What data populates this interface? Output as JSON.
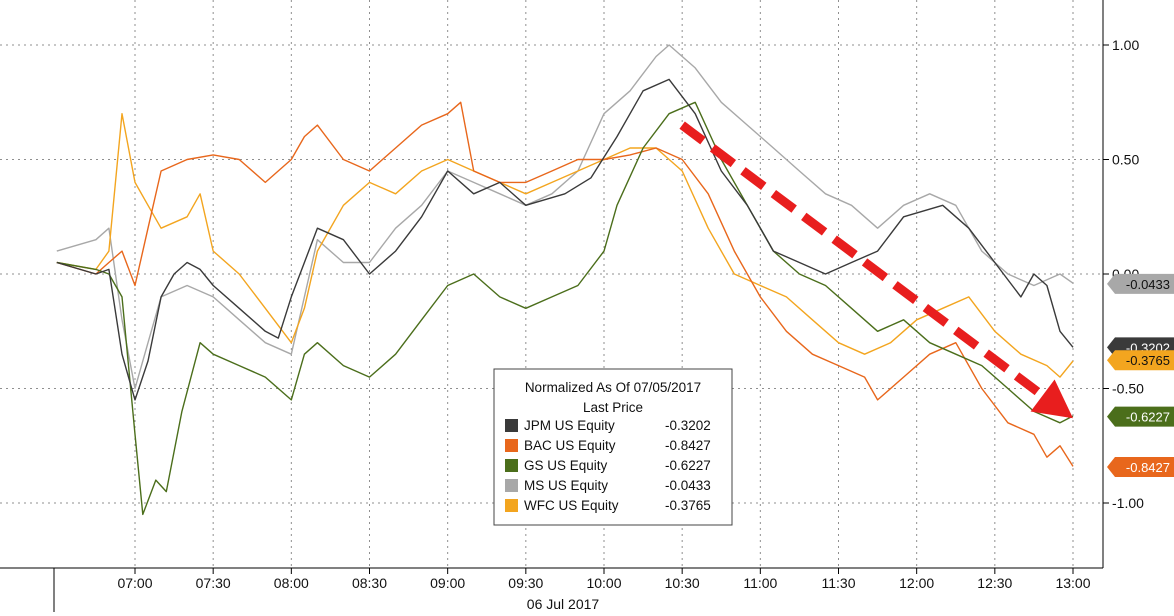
{
  "chart_data": {
    "type": "line",
    "title": "",
    "xlabel": "06 Jul 2017",
    "ylabel": "",
    "x_ticks": [
      "07:00",
      "07:30",
      "08:00",
      "08:30",
      "09:00",
      "09:30",
      "10:00",
      "10:30",
      "11:00",
      "11:30",
      "12:00",
      "12:30",
      "13:00"
    ],
    "y_ticks": [
      "1.00",
      "0.50",
      "0.00",
      "-0.50",
      "-1.00"
    ],
    "ylim": [
      -1.3,
      1.2
    ],
    "xlim": [
      "06:30",
      "13:00"
    ],
    "grid": true,
    "legend": {
      "placement": "bottom-center",
      "title": "Normalized As Of 07/05/2017",
      "subtitle": "Last Price"
    },
    "series": [
      {
        "name": "JPM US Equity",
        "last": "-0.3202",
        "color": "#3a3a3a",
        "points": [
          [
            "06:30",
            0.05
          ],
          [
            "06:45",
            0.0
          ],
          [
            "06:50",
            0.02
          ],
          [
            "06:55",
            -0.35
          ],
          [
            "07:00",
            -0.55
          ],
          [
            "07:05",
            -0.38
          ],
          [
            "07:10",
            -0.1
          ],
          [
            "07:15",
            0.0
          ],
          [
            "07:20",
            0.05
          ],
          [
            "07:25",
            0.02
          ],
          [
            "07:30",
            -0.05
          ],
          [
            "07:40",
            -0.15
          ],
          [
            "07:50",
            -0.25
          ],
          [
            "07:55",
            -0.28
          ],
          [
            "08:00",
            -0.1
          ],
          [
            "08:05",
            0.05
          ],
          [
            "08:10",
            0.2
          ],
          [
            "08:20",
            0.15
          ],
          [
            "08:30",
            0.0
          ],
          [
            "08:40",
            0.1
          ],
          [
            "08:50",
            0.25
          ],
          [
            "09:00",
            0.45
          ],
          [
            "09:10",
            0.35
          ],
          [
            "09:20",
            0.4
          ],
          [
            "09:30",
            0.3
          ],
          [
            "09:45",
            0.35
          ],
          [
            "09:55",
            0.42
          ],
          [
            "10:05",
            0.6
          ],
          [
            "10:15",
            0.8
          ],
          [
            "10:25",
            0.85
          ],
          [
            "10:35",
            0.7
          ],
          [
            "10:45",
            0.45
          ],
          [
            "10:55",
            0.3
          ],
          [
            "11:05",
            0.1
          ],
          [
            "11:15",
            0.05
          ],
          [
            "11:25",
            0.0
          ],
          [
            "11:35",
            0.05
          ],
          [
            "11:45",
            0.1
          ],
          [
            "11:55",
            0.25
          ],
          [
            "12:10",
            0.3
          ],
          [
            "12:20",
            0.2
          ],
          [
            "12:30",
            0.05
          ],
          [
            "12:40",
            -0.1
          ],
          [
            "12:45",
            0.0
          ],
          [
            "12:50",
            -0.05
          ],
          [
            "12:55",
            -0.25
          ],
          [
            "13:00",
            -0.32
          ]
        ]
      },
      {
        "name": "BAC US Equity",
        "last": "-0.8427",
        "color": "#e8671c",
        "points": [
          [
            "06:30",
            0.05
          ],
          [
            "06:45",
            0.0
          ],
          [
            "06:50",
            0.05
          ],
          [
            "06:55",
            0.1
          ],
          [
            "07:00",
            -0.05
          ],
          [
            "07:05",
            0.2
          ],
          [
            "07:10",
            0.45
          ],
          [
            "07:20",
            0.5
          ],
          [
            "07:30",
            0.52
          ],
          [
            "07:40",
            0.5
          ],
          [
            "07:50",
            0.4
          ],
          [
            "08:00",
            0.5
          ],
          [
            "08:05",
            0.6
          ],
          [
            "08:10",
            0.65
          ],
          [
            "08:20",
            0.5
          ],
          [
            "08:30",
            0.45
          ],
          [
            "08:40",
            0.55
          ],
          [
            "08:50",
            0.65
          ],
          [
            "09:00",
            0.7
          ],
          [
            "09:05",
            0.75
          ],
          [
            "09:10",
            0.45
          ],
          [
            "09:20",
            0.4
          ],
          [
            "09:30",
            0.4
          ],
          [
            "09:40",
            0.45
          ],
          [
            "09:50",
            0.5
          ],
          [
            "10:00",
            0.5
          ],
          [
            "10:10",
            0.52
          ],
          [
            "10:20",
            0.55
          ],
          [
            "10:30",
            0.5
          ],
          [
            "10:40",
            0.35
          ],
          [
            "10:50",
            0.1
          ],
          [
            "11:00",
            -0.1
          ],
          [
            "11:10",
            -0.25
          ],
          [
            "11:20",
            -0.35
          ],
          [
            "11:30",
            -0.4
          ],
          [
            "11:40",
            -0.45
          ],
          [
            "11:45",
            -0.55
          ],
          [
            "11:55",
            -0.45
          ],
          [
            "12:05",
            -0.35
          ],
          [
            "12:15",
            -0.3
          ],
          [
            "12:25",
            -0.5
          ],
          [
            "12:35",
            -0.65
          ],
          [
            "12:45",
            -0.7
          ],
          [
            "12:50",
            -0.8
          ],
          [
            "12:55",
            -0.75
          ],
          [
            "13:00",
            -0.84
          ]
        ]
      },
      {
        "name": "GS US Equity",
        "last": "-0.6227",
        "color": "#4b6e1b",
        "points": [
          [
            "06:30",
            0.05
          ],
          [
            "06:45",
            0.02
          ],
          [
            "06:50",
            0.0
          ],
          [
            "06:55",
            -0.1
          ],
          [
            "07:00",
            -0.7
          ],
          [
            "07:03",
            -1.05
          ],
          [
            "07:08",
            -0.9
          ],
          [
            "07:12",
            -0.95
          ],
          [
            "07:18",
            -0.6
          ],
          [
            "07:25",
            -0.3
          ],
          [
            "07:30",
            -0.35
          ],
          [
            "07:40",
            -0.4
          ],
          [
            "07:50",
            -0.45
          ],
          [
            "08:00",
            -0.55
          ],
          [
            "08:05",
            -0.35
          ],
          [
            "08:10",
            -0.3
          ],
          [
            "08:20",
            -0.4
          ],
          [
            "08:30",
            -0.45
          ],
          [
            "08:40",
            -0.35
          ],
          [
            "08:50",
            -0.2
          ],
          [
            "09:00",
            -0.05
          ],
          [
            "09:10",
            0.0
          ],
          [
            "09:20",
            -0.1
          ],
          [
            "09:30",
            -0.15
          ],
          [
            "09:40",
            -0.1
          ],
          [
            "09:50",
            -0.05
          ],
          [
            "10:00",
            0.1
          ],
          [
            "10:05",
            0.3
          ],
          [
            "10:15",
            0.55
          ],
          [
            "10:25",
            0.7
          ],
          [
            "10:35",
            0.75
          ],
          [
            "10:45",
            0.5
          ],
          [
            "10:55",
            0.3
          ],
          [
            "11:05",
            0.1
          ],
          [
            "11:15",
            0.0
          ],
          [
            "11:25",
            -0.05
          ],
          [
            "11:35",
            -0.15
          ],
          [
            "11:45",
            -0.25
          ],
          [
            "11:55",
            -0.2
          ],
          [
            "12:05",
            -0.3
          ],
          [
            "12:15",
            -0.35
          ],
          [
            "12:25",
            -0.4
          ],
          [
            "12:35",
            -0.5
          ],
          [
            "12:45",
            -0.6
          ],
          [
            "12:55",
            -0.65
          ],
          [
            "13:00",
            -0.62
          ]
        ]
      },
      {
        "name": "MS US Equity",
        "last": "-0.0433",
        "color": "#a8a8a8",
        "points": [
          [
            "06:30",
            0.1
          ],
          [
            "06:45",
            0.15
          ],
          [
            "06:50",
            0.2
          ],
          [
            "06:55",
            -0.2
          ],
          [
            "07:00",
            -0.5
          ],
          [
            "07:05",
            -0.3
          ],
          [
            "07:10",
            -0.1
          ],
          [
            "07:20",
            -0.05
          ],
          [
            "07:30",
            -0.1
          ],
          [
            "07:40",
            -0.2
          ],
          [
            "07:50",
            -0.3
          ],
          [
            "08:00",
            -0.35
          ],
          [
            "08:05",
            -0.1
          ],
          [
            "08:10",
            0.15
          ],
          [
            "08:20",
            0.05
          ],
          [
            "08:30",
            0.05
          ],
          [
            "08:40",
            0.2
          ],
          [
            "08:50",
            0.3
          ],
          [
            "09:00",
            0.45
          ],
          [
            "09:10",
            0.4
          ],
          [
            "09:20",
            0.35
          ],
          [
            "09:30",
            0.3
          ],
          [
            "09:40",
            0.35
          ],
          [
            "09:50",
            0.45
          ],
          [
            "10:00",
            0.7
          ],
          [
            "10:10",
            0.8
          ],
          [
            "10:20",
            0.95
          ],
          [
            "10:25",
            1.0
          ],
          [
            "10:35",
            0.9
          ],
          [
            "10:45",
            0.75
          ],
          [
            "10:55",
            0.65
          ],
          [
            "11:05",
            0.55
          ],
          [
            "11:15",
            0.45
          ],
          [
            "11:25",
            0.35
          ],
          [
            "11:35",
            0.3
          ],
          [
            "11:45",
            0.2
          ],
          [
            "11:55",
            0.3
          ],
          [
            "12:05",
            0.35
          ],
          [
            "12:15",
            0.3
          ],
          [
            "12:25",
            0.1
          ],
          [
            "12:35",
            0.0
          ],
          [
            "12:45",
            -0.05
          ],
          [
            "12:55",
            0.0
          ],
          [
            "13:00",
            -0.04
          ]
        ]
      },
      {
        "name": "WFC US Equity",
        "last": "-0.3765",
        "color": "#f3a51f",
        "points": [
          [
            "06:30",
            0.05
          ],
          [
            "06:45",
            0.02
          ],
          [
            "06:50",
            0.1
          ],
          [
            "06:55",
            0.7
          ],
          [
            "07:00",
            0.4
          ],
          [
            "07:05",
            0.3
          ],
          [
            "07:10",
            0.2
          ],
          [
            "07:20",
            0.25
          ],
          [
            "07:25",
            0.35
          ],
          [
            "07:30",
            0.1
          ],
          [
            "07:40",
            0.0
          ],
          [
            "07:50",
            -0.15
          ],
          [
            "08:00",
            -0.3
          ],
          [
            "08:05",
            -0.15
          ],
          [
            "08:10",
            0.1
          ],
          [
            "08:20",
            0.3
          ],
          [
            "08:30",
            0.4
          ],
          [
            "08:40",
            0.35
          ],
          [
            "08:50",
            0.45
          ],
          [
            "09:00",
            0.5
          ],
          [
            "09:10",
            0.45
          ],
          [
            "09:20",
            0.4
          ],
          [
            "09:30",
            0.35
          ],
          [
            "09:40",
            0.4
          ],
          [
            "09:50",
            0.45
          ],
          [
            "10:00",
            0.5
          ],
          [
            "10:10",
            0.55
          ],
          [
            "10:20",
            0.55
          ],
          [
            "10:30",
            0.45
          ],
          [
            "10:40",
            0.2
          ],
          [
            "10:50",
            0.0
          ],
          [
            "11:00",
            -0.05
          ],
          [
            "11:10",
            -0.1
          ],
          [
            "11:20",
            -0.2
          ],
          [
            "11:30",
            -0.3
          ],
          [
            "11:40",
            -0.35
          ],
          [
            "11:50",
            -0.3
          ],
          [
            "12:00",
            -0.2
          ],
          [
            "12:10",
            -0.15
          ],
          [
            "12:20",
            -0.1
          ],
          [
            "12:30",
            -0.25
          ],
          [
            "12:40",
            -0.35
          ],
          [
            "12:50",
            -0.4
          ],
          [
            "12:55",
            -0.45
          ],
          [
            "13:00",
            -0.38
          ]
        ]
      }
    ],
    "annotation": {
      "type": "arrow",
      "color": "#e81e1e",
      "from": [
        "10:30",
        0.65
      ],
      "to": [
        "13:00",
        -0.63
      ]
    }
  }
}
